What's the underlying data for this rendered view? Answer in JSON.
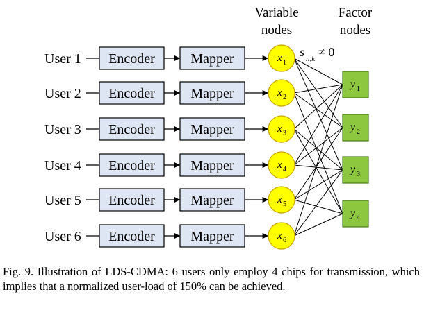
{
  "headers": {
    "variable_nodes": [
      "Variable",
      "nodes"
    ],
    "factor_nodes": [
      "Factor",
      "nodes"
    ]
  },
  "users": [
    {
      "label": "User 1",
      "encoder": "Encoder",
      "mapper": "Mapper",
      "var_main": "x",
      "var_sub": "1"
    },
    {
      "label": "User 2",
      "encoder": "Encoder",
      "mapper": "Mapper",
      "var_main": "x",
      "var_sub": "2"
    },
    {
      "label": "User 3",
      "encoder": "Encoder",
      "mapper": "Mapper",
      "var_main": "x",
      "var_sub": "3"
    },
    {
      "label": "User 4",
      "encoder": "Encoder",
      "mapper": "Mapper",
      "var_main": "x",
      "var_sub": "4"
    },
    {
      "label": "User 5",
      "encoder": "Encoder",
      "mapper": "Mapper",
      "var_main": "x",
      "var_sub": "5"
    },
    {
      "label": "User 6",
      "encoder": "Encoder",
      "mapper": "Mapper",
      "var_main": "x",
      "var_sub": "6"
    }
  ],
  "factors": [
    {
      "main": "y",
      "sub": "1"
    },
    {
      "main": "y",
      "sub": "2"
    },
    {
      "main": "y",
      "sub": "3"
    },
    {
      "main": "y",
      "sub": "4"
    }
  ],
  "edges": [
    [
      1,
      1
    ],
    [
      1,
      2
    ],
    [
      1,
      3
    ],
    [
      2,
      1
    ],
    [
      2,
      2
    ],
    [
      2,
      4
    ],
    [
      3,
      1
    ],
    [
      3,
      3
    ],
    [
      3,
      4
    ],
    [
      4,
      1
    ],
    [
      4,
      2
    ],
    [
      4,
      3
    ],
    [
      5,
      2
    ],
    [
      5,
      3
    ],
    [
      5,
      4
    ],
    [
      6,
      1
    ],
    [
      6,
      3
    ],
    [
      6,
      4
    ]
  ],
  "edge_label": {
    "main": "s",
    "sub": "n,k",
    "rel": "≠ 0"
  },
  "caption": "Fig. 9.    Illustration of LDS-CDMA: 6 users only employ 4 chips for transmission, which implies that a normalized user-load of 150% can be achieved.",
  "colors": {
    "box_fill": "#dde6f2",
    "variable_node_fill": "#ffff00",
    "variable_node_stroke": "#c9a500",
    "factor_node_fill": "#8dc63f",
    "factor_node_stroke": "#4a7a1c"
  }
}
